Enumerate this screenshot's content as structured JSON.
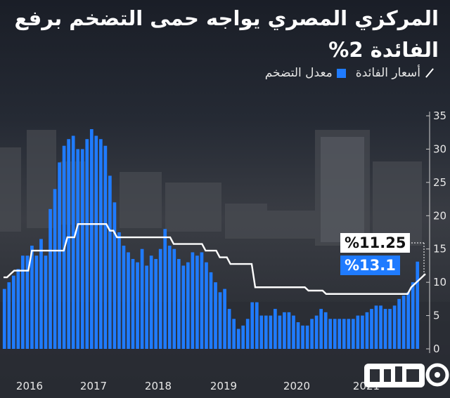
{
  "title": "المركزي المصري يواجه حمى التضخم برفع الفائدة 2%",
  "legend": {
    "interest": "أسعار الفائدة",
    "inflation": "معدل التضخم"
  },
  "callouts": {
    "interest_rate": "%11.25",
    "inflation_rate": "%13.1"
  },
  "colors": {
    "inflation_bars": "#1f7bff",
    "interest_line": "#ffffff",
    "background": "#1b1f29"
  },
  "icons": [
    "legend-line-icon",
    "legend-bar-icon",
    "publisher-logo-icon"
  ],
  "chart_data": {
    "type": "bar",
    "x_labels": [
      "2016",
      "2017",
      "2018",
      "2019",
      "2020",
      "2021"
    ],
    "ylim": [
      0,
      35
    ],
    "y_ticks": [
      0,
      5,
      10,
      15,
      20,
      25,
      30,
      35
    ],
    "grid": false,
    "series": [
      {
        "name": "معدل التضخم",
        "type": "bar",
        "values": [
          9,
          10,
          11,
          12,
          14,
          14,
          15.5,
          14,
          16.5,
          14,
          21,
          24,
          28,
          30.5,
          31.5,
          32,
          30,
          30,
          31.5,
          33,
          32,
          31.5,
          30.5,
          26,
          22,
          17.5,
          15.5,
          14.5,
          13.5,
          13,
          15,
          12.5,
          14,
          13.5,
          15,
          18,
          15.5,
          15,
          13.5,
          12.5,
          13,
          14.5,
          14,
          14.5,
          13,
          11.5,
          10,
          8.5,
          9,
          6,
          4.5,
          3,
          3.5,
          4.5,
          7,
          7,
          5,
          5,
          5,
          6,
          5,
          5.5,
          5.5,
          5,
          4,
          3.5,
          3.5,
          4.5,
          5,
          6,
          5.5,
          4.5,
          4.5,
          4.5,
          4.5,
          4.5,
          4.5,
          5,
          5,
          5.5,
          6,
          6.5,
          6.5,
          6,
          6,
          6.5,
          7.5,
          8,
          8.5,
          10,
          13.1
        ]
      },
      {
        "name": "أسعار الفائدة",
        "type": "step-line",
        "values": [
          10.75,
          10.75,
          11.25,
          11.75,
          11.75,
          11.75,
          11.75,
          11.75,
          14.75,
          14.75,
          14.75,
          14.75,
          14.75,
          14.75,
          14.75,
          14.75,
          14.75,
          14.75,
          16.75,
          16.75,
          16.75,
          18.75,
          18.75,
          18.75,
          18.75,
          18.75,
          18.75,
          18.75,
          18.75,
          18.75,
          17.75,
          17.75,
          16.75,
          16.75,
          16.75,
          16.75,
          16.75,
          16.75,
          16.75,
          16.75,
          16.75,
          16.75,
          16.75,
          16.75,
          16.75,
          16.75,
          16.75,
          16.75,
          15.75,
          15.75,
          15.75,
          15.75,
          15.75,
          15.75,
          15.75,
          15.75,
          15.75,
          14.75,
          14.75,
          14.75,
          14.75,
          13.75,
          13.75,
          13.75,
          12.75,
          12.75,
          12.75,
          12.75,
          12.75,
          12.75,
          12.75,
          9.25,
          9.25,
          9.25,
          9.25,
          9.25,
          9.25,
          9.25,
          9.25,
          9.25,
          9.25,
          9.25,
          9.25,
          9.25,
          9.25,
          9.25,
          8.75,
          8.75,
          8.75,
          8.75,
          8.75,
          8.25,
          8.25,
          8.25,
          8.25,
          8.25,
          8.25,
          8.25,
          8.25,
          8.25,
          8.25,
          8.25,
          8.25,
          8.25,
          8.25,
          8.25,
          8.25,
          8.25,
          8.25,
          8.25,
          8.25,
          8.25,
          8.25,
          8.25,
          8.25,
          9.25,
          9.75,
          10.25,
          10.75,
          11.25
        ]
      }
    ]
  }
}
